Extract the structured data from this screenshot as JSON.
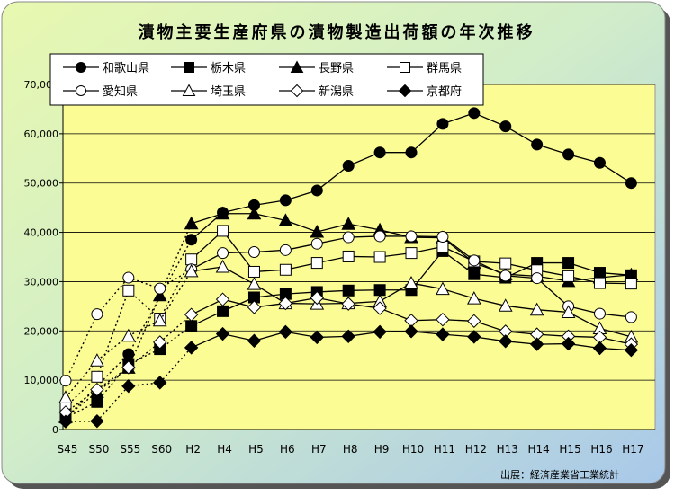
{
  "source_note": "出展：経済産業省工業統計",
  "chart_data": {
    "type": "line",
    "title": "漬物主要生産府県の漬物製造出荷額の年次推移",
    "xlabel": "",
    "ylabel": "",
    "ylim": [
      0,
      70000
    ],
    "yticks": [
      "0",
      "10,000",
      "20,000",
      "30,000",
      "40,000",
      "50,000",
      "60,000",
      "70,000"
    ],
    "grid": true,
    "legend_position": "top-left",
    "categories": [
      "S45",
      "S50",
      "S55",
      "S60",
      "H2",
      "H4",
      "H5",
      "H6",
      "H7",
      "H8",
      "H9",
      "H10",
      "H11",
      "H12",
      "H13",
      "H14",
      "H15",
      "H16",
      "H17"
    ],
    "series": [
      {
        "name": "和歌山県",
        "marker": "circle",
        "fill": "#000000",
        "values": [
          2300,
          null,
          15300,
          null,
          38500,
          44000,
          45500,
          46500,
          48500,
          53500,
          56200,
          56200,
          62000,
          64200,
          61500,
          57800,
          55800,
          54100,
          50000
        ]
      },
      {
        "name": "栃木県",
        "marker": "square",
        "fill": "#000000",
        "values": [
          2400,
          5600,
          13300,
          16300,
          21000,
          24000,
          26800,
          27500,
          27900,
          28200,
          28300,
          28300,
          36200,
          31500,
          30800,
          33800,
          33800,
          31800,
          31300
        ]
      },
      {
        "name": "長野県",
        "marker": "triangle",
        "fill": "#000000",
        "values": [
          2500,
          7600,
          12500,
          27200,
          41800,
          43800,
          43800,
          42400,
          40100,
          41700,
          40500,
          39000,
          38900,
          33800,
          31500,
          31100,
          30100,
          30800,
          31400
        ]
      },
      {
        "name": "群馬県",
        "marker": "square",
        "fill": "#ffffff",
        "values": [
          4600,
          10700,
          28200,
          22500,
          34500,
          40300,
          32000,
          32400,
          33800,
          35100,
          35000,
          35800,
          37100,
          34100,
          33700,
          32300,
          31100,
          29700,
          29600
        ]
      },
      {
        "name": "愛知県",
        "marker": "circle",
        "fill": "#ffffff",
        "values": [
          9900,
          23400,
          30800,
          28600,
          32500,
          35800,
          36000,
          36400,
          37700,
          39000,
          39200,
          39200,
          39100,
          34300,
          31200,
          30700,
          25000,
          23500,
          22800
        ]
      },
      {
        "name": "埼玉県",
        "marker": "triangle",
        "fill": "#ffffff",
        "values": [
          6500,
          14000,
          19000,
          22100,
          32100,
          33000,
          29500,
          25600,
          25500,
          25600,
          26000,
          29700,
          28500,
          26600,
          25100,
          24300,
          23800,
          20500,
          18800
        ]
      },
      {
        "name": "新潟県",
        "marker": "diamond",
        "fill": "#ffffff",
        "values": [
          3500,
          8100,
          12600,
          17700,
          23300,
          26400,
          24800,
          25600,
          26700,
          25500,
          24600,
          22100,
          22300,
          22000,
          19900,
          19300,
          18900,
          18700,
          17300
        ]
      },
      {
        "name": "京都府",
        "marker": "diamond",
        "fill": "#000000",
        "values": [
          1600,
          1700,
          8800,
          9500,
          16600,
          19400,
          18000,
          19800,
          18700,
          18900,
          19800,
          19900,
          19300,
          18800,
          17900,
          17300,
          17400,
          16500,
          16100
        ]
      }
    ]
  }
}
